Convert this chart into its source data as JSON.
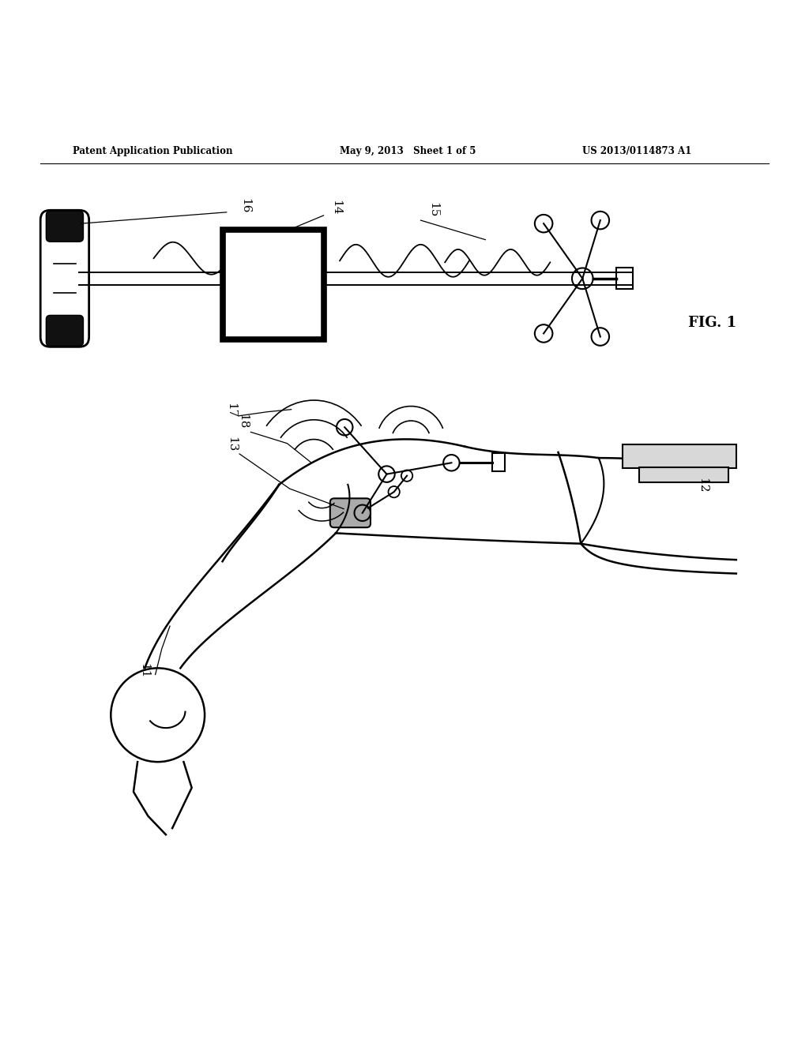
{
  "bg_color": "#ffffff",
  "header_text1": "Patent Application Publication",
  "header_text2": "May 9, 2013   Sheet 1 of 5",
  "header_text3": "US 2013/0114873 A1",
  "fig_label": "FIG. 1"
}
